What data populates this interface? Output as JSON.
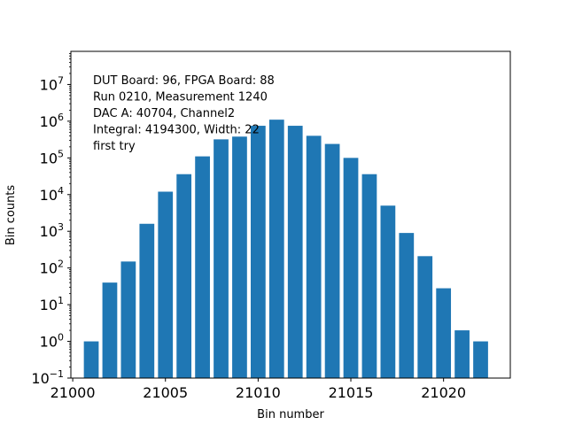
{
  "chart_data": {
    "type": "bar",
    "title": "",
    "xlabel": "Bin number",
    "ylabel": "Bin counts",
    "yscale": "log",
    "xlim": [
      20999.9,
      21023.6
    ],
    "ylim": [
      0.1,
      80000000
    ],
    "bar_color": "#1f77b4",
    "bar_width": 0.8,
    "x": [
      21001,
      21002,
      21003,
      21004,
      21005,
      21006,
      21007,
      21008,
      21009,
      21010,
      21011,
      21012,
      21013,
      21014,
      21015,
      21016,
      21017,
      21018,
      21019,
      21020,
      21021,
      21022
    ],
    "values": [
      1,
      40,
      150,
      1600,
      12000,
      36000,
      110000,
      320000,
      380000,
      750000,
      1100000,
      750000,
      400000,
      240000,
      100000,
      36000,
      5000,
      900,
      210,
      28,
      2,
      1
    ],
    "xticks": [
      {
        "value": 21000,
        "label": "21000"
      },
      {
        "value": 21005,
        "label": "21005"
      },
      {
        "value": 21010,
        "label": "21010"
      },
      {
        "value": 21015,
        "label": "21015"
      },
      {
        "value": 21020,
        "label": "21020"
      }
    ],
    "yticks": [
      {
        "exp": -1,
        "base": "10",
        "sup": "−1"
      },
      {
        "exp": 0,
        "base": "10",
        "sup": "0"
      },
      {
        "exp": 1,
        "base": "10",
        "sup": "1"
      },
      {
        "exp": 2,
        "base": "10",
        "sup": "2"
      },
      {
        "exp": 3,
        "base": "10",
        "sup": "3"
      },
      {
        "exp": 4,
        "base": "10",
        "sup": "4"
      },
      {
        "exp": 5,
        "base": "10",
        "sup": "5"
      },
      {
        "exp": 6,
        "base": "10",
        "sup": "6"
      },
      {
        "exp": 7,
        "base": "10",
        "sup": "7"
      }
    ],
    "annotations": [
      "DUT Board: 96, FPGA Board: 88",
      "Run 0210, Measurement 1240",
      "DAC A: 40704, Channel2",
      "Integral: 4194300, Width: 22",
      "first try"
    ]
  }
}
